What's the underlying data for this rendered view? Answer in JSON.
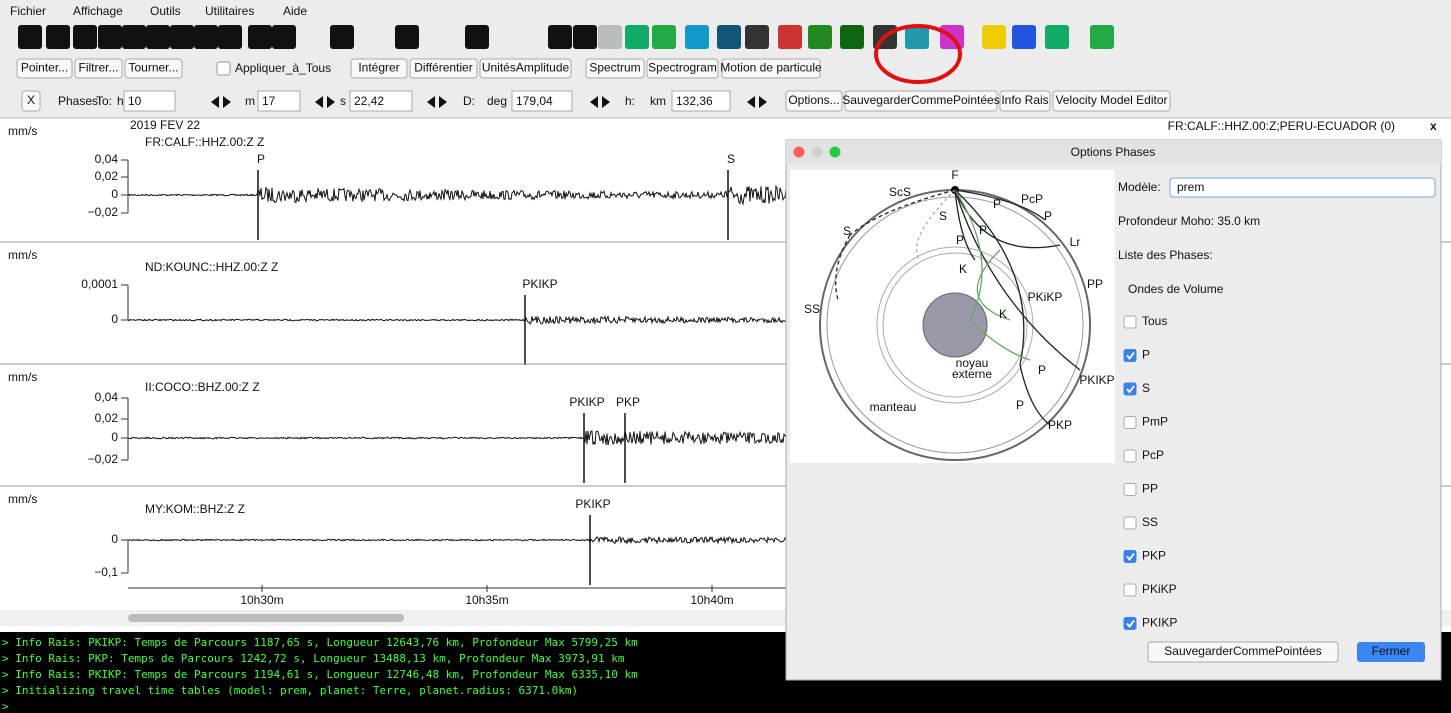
{
  "menu": [
    "Fichier",
    "Affichage",
    "Outils",
    "Utilitaires",
    "Aide"
  ],
  "toolbar": {
    "buttons": [
      "Pointer...",
      "Filtrer...",
      "Tourner..."
    ],
    "apply_all": "Appliquer_à_Tous",
    "buttons2": [
      "Intégrer",
      "Différentier",
      "UnitésAmplitude",
      "Spectrum",
      "Spectrogram",
      "Motion de particule"
    ]
  },
  "phase_bar": {
    "close": "X",
    "label": "Phases:",
    "to": "To:",
    "h": "h",
    "h_value": "10",
    "m": "m",
    "m_value": "17",
    "s": "s",
    "s_value": "22,42",
    "d": "D:",
    "deg": "deg",
    "deg_value": "179,04",
    "depth": "h:",
    "km": "km",
    "km_value": "132,36",
    "buttons": [
      "Options...",
      "SauvegarderCommePointées",
      "Info Rais",
      "Velocity Model Editor"
    ]
  },
  "seismogram": {
    "date": "2019 FEV 22",
    "title": "FR:CALF::HHZ.00:Z;PERU-ECUADOR (0)",
    "close": "x",
    "traces": [
      {
        "unit": "mm/s",
        "name": "FR:CALF::HHZ.00:Z Z",
        "ticks": [
          "0,04",
          "0,02",
          "0",
          "−0,02"
        ],
        "phases": [
          {
            "label": "P",
            "color": "#e020e0"
          },
          {
            "label": "S",
            "color": "#30d0e0"
          }
        ]
      },
      {
        "unit": "mm/s",
        "name": "ND:KOUNC::HHZ.00:Z Z",
        "ticks": [
          "0,0001",
          "0"
        ],
        "phases": [
          {
            "label": "PKIKP",
            "color": "#e020e0"
          }
        ]
      },
      {
        "unit": "mm/s",
        "name": "II:COCO::BHZ.00:Z Z",
        "ticks": [
          "0,04",
          "0,02",
          "0",
          "−0,02"
        ],
        "phases": [
          {
            "label": "PKIKP",
            "color": "#e020e0"
          },
          {
            "label": "PKP",
            "color": "#e020e0"
          }
        ]
      },
      {
        "unit": "mm/s",
        "name": "MY:KOM::BHZ:Z Z",
        "ticks": [
          "0",
          "−0,1"
        ],
        "phases": [
          {
            "label": "PKIKP",
            "color": "#e020e0"
          }
        ]
      }
    ],
    "time_labels": [
      "10h30m",
      "10h35m",
      "10h40m"
    ]
  },
  "console": [
    "> Info Rais: PKIKP: Temps de Parcours 1187,65 s, Longueur 12643,76 km, Profondeur Max 5799,25 km",
    "> Info Rais: PKP: Temps de Parcours 1242,72 s, Longueur 13488,13 km, Profondeur Max 3973,91 km",
    "> Info Rais: PKIKP: Temps de Parcours 1194,61 s, Longueur 12746,48 km, Profondeur Max 6335,10 km",
    "> Initializing travel time tables (model: prem, planet: Terre, planet.radius: 6371.0km)",
    ">"
  ],
  "dialog": {
    "title": "Options Phases",
    "model_label": "Modèle:",
    "model": "prem",
    "moho": "Profondeur Moho: 35.0 km",
    "list_label": "Liste des Phases:",
    "group": "Ondes de Volume",
    "phases": [
      {
        "label": "Tous",
        "checked": false
      },
      {
        "label": "P",
        "checked": true
      },
      {
        "label": "S",
        "checked": true
      },
      {
        "label": "PmP",
        "checked": false
      },
      {
        "label": "PcP",
        "checked": false
      },
      {
        "label": "PP",
        "checked": false
      },
      {
        "label": "SS",
        "checked": false
      },
      {
        "label": "PKP",
        "checked": true
      },
      {
        "label": "PKiKP",
        "checked": false
      },
      {
        "label": "PKIKP",
        "checked": true
      }
    ],
    "save": "SauvegarderCommePointées",
    "close": "Fermer",
    "diagram_labels": [
      "F",
      "ScS",
      "S",
      "PcP",
      "P",
      "P",
      "P",
      "P",
      "Lr",
      "S",
      "SS",
      "K",
      "PKiKP",
      "PP",
      "K",
      "noyau",
      "externe",
      "P",
      "PKIKP",
      "manteau",
      "P",
      "PKP"
    ]
  }
}
